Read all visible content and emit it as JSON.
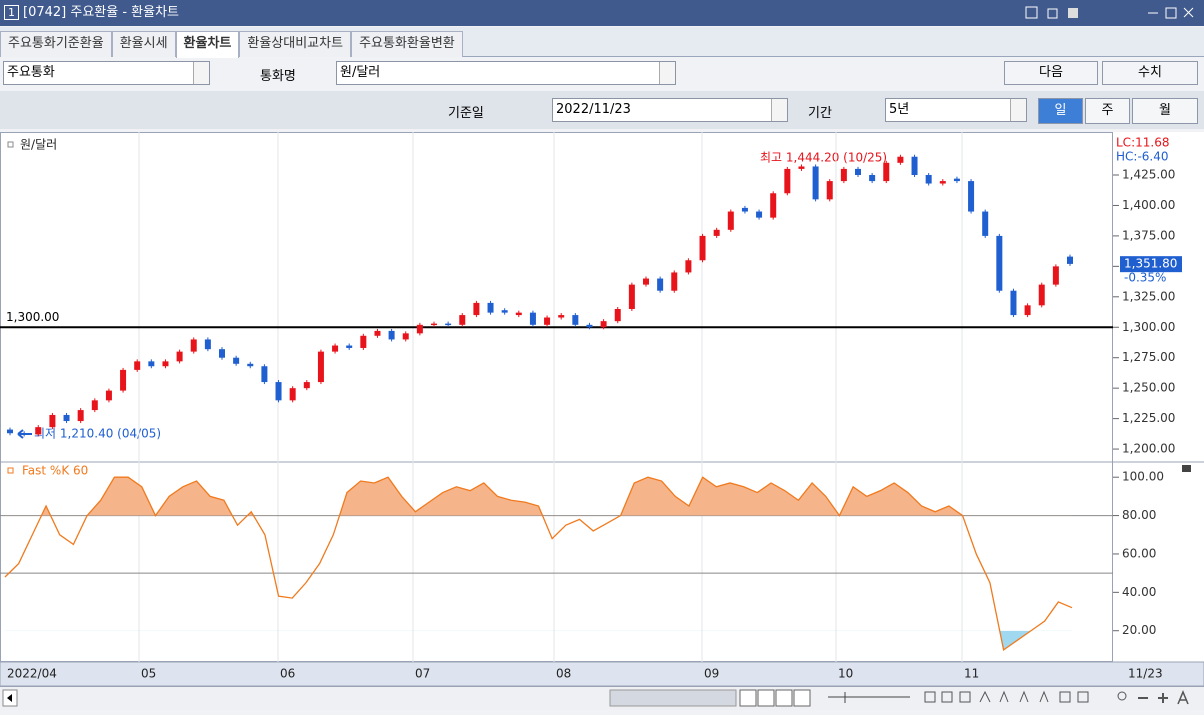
{
  "window": {
    "number": "1",
    "title": "[0742] 주요환율 - 환율차트"
  },
  "tabs": [
    "주요통화기준환율",
    "환율시세",
    "환율차트",
    "환율상대비교차트",
    "주요통화환율변환"
  ],
  "controls": {
    "group": "주요통화",
    "currency_label": "통화명",
    "currency": "원/달러",
    "next": "다음",
    "values": "수치",
    "date_label": "기준일",
    "date": "2022/11/23",
    "period_label": "기간",
    "period": "5년",
    "intervals": [
      "일",
      "주",
      "월"
    ]
  },
  "x_axis_labels": [
    "2022/04",
    "05",
    "06",
    "07",
    "08",
    "09",
    "10",
    "11",
    "11/23"
  ],
  "chart_data": [
    {
      "type": "candlestick",
      "title": "원/달러",
      "color_up": "#e8141b",
      "color_down": "#1f5fd0",
      "ylim": [
        1190.2,
        1460.3
      ],
      "yticks": [
        {
          "value": 1200,
          "label": "1,200.00"
        },
        {
          "value": 1225,
          "label": "1,225.00"
        },
        {
          "value": 1250,
          "label": "1,250.00"
        },
        {
          "value": 1275,
          "label": "1,275.00"
        },
        {
          "value": 1300,
          "label": "1,300.00"
        },
        {
          "value": 1325,
          "label": "1,325.00"
        },
        {
          "value": 1350,
          "label": "1,350.00"
        },
        {
          "value": 1375,
          "label": "1,375.00"
        },
        {
          "value": 1400,
          "label": "1,400.00"
        },
        {
          "value": 1425,
          "label": "1,425.00"
        }
      ],
      "ref_line": {
        "value": 1300,
        "label": "1,300.00"
      },
      "high_label": "최고 1,444.20 (10/25)",
      "low_label": "최저 1,210.40 (04/05)",
      "lc": "LC:11.68",
      "hc": "HC:-6.40",
      "last": {
        "value": 1351.8,
        "label": "1,351.80"
      },
      "change": "-0.35%",
      "candles": [
        [
          1216,
          1213
        ],
        [
          1213,
          1212
        ],
        [
          1212,
          1218
        ],
        [
          1218,
          1228
        ],
        [
          1228,
          1223
        ],
        [
          1223,
          1232
        ],
        [
          1232,
          1240
        ],
        [
          1240,
          1248
        ],
        [
          1248,
          1265
        ],
        [
          1265,
          1272
        ],
        [
          1272,
          1268
        ],
        [
          1268,
          1272
        ],
        [
          1272,
          1280
        ],
        [
          1280,
          1290
        ],
        [
          1290,
          1282
        ],
        [
          1282,
          1275
        ],
        [
          1275,
          1270
        ],
        [
          1270,
          1268
        ],
        [
          1268,
          1255
        ],
        [
          1255,
          1240
        ],
        [
          1240,
          1250
        ],
        [
          1250,
          1255
        ],
        [
          1255,
          1280
        ],
        [
          1280,
          1285
        ],
        [
          1285,
          1283
        ],
        [
          1283,
          1293
        ],
        [
          1293,
          1297
        ],
        [
          1297,
          1290
        ],
        [
          1290,
          1295
        ],
        [
          1295,
          1302
        ],
        [
          1302,
          1303
        ],
        [
          1303,
          1302
        ],
        [
          1302,
          1310
        ],
        [
          1310,
          1320
        ],
        [
          1320,
          1312
        ],
        [
          1314,
          1312
        ],
        [
          1310,
          1312
        ],
        [
          1312,
          1302
        ],
        [
          1302,
          1308
        ],
        [
          1308,
          1310
        ],
        [
          1310,
          1302
        ],
        [
          1302,
          1300
        ],
        [
          1300,
          1305
        ],
        [
          1305,
          1315
        ],
        [
          1315,
          1335
        ],
        [
          1335,
          1340
        ],
        [
          1340,
          1330
        ],
        [
          1330,
          1345
        ],
        [
          1345,
          1355
        ],
        [
          1355,
          1375
        ],
        [
          1375,
          1380
        ],
        [
          1380,
          1395
        ],
        [
          1398,
          1395
        ],
        [
          1395,
          1390
        ],
        [
          1390,
          1410
        ],
        [
          1410,
          1430
        ],
        [
          1430,
          1432
        ],
        [
          1432,
          1405
        ],
        [
          1405,
          1420
        ],
        [
          1420,
          1430
        ],
        [
          1430,
          1425
        ],
        [
          1425,
          1420
        ],
        [
          1420,
          1435
        ],
        [
          1435,
          1440
        ],
        [
          1440,
          1425
        ],
        [
          1425,
          1418
        ],
        [
          1418,
          1420
        ],
        [
          1422,
          1420
        ],
        [
          1420,
          1395
        ],
        [
          1395,
          1375
        ],
        [
          1375,
          1330
        ],
        [
          1330,
          1310
        ],
        [
          1310,
          1318
        ],
        [
          1318,
          1335
        ],
        [
          1335,
          1350
        ],
        [
          1358,
          1352
        ]
      ]
    },
    {
      "type": "line",
      "title": "Fast %K 60",
      "color": "#f07a1e",
      "fill_high_color": "#f5b48a",
      "fill_low_color": "#9fd8ef",
      "fill_above": 80,
      "fill_below": 20,
      "ref_lines": [
        80,
        50
      ],
      "ylim": [
        3.7,
        107.4
      ],
      "yticks": [
        {
          "value": 20,
          "label": "20.00"
        },
        {
          "value": 40,
          "label": "40.00"
        },
        {
          "value": 60,
          "label": "60.00"
        },
        {
          "value": 80,
          "label": "80.00"
        },
        {
          "value": 100,
          "label": "100.00"
        }
      ],
      "values": [
        48,
        55,
        70,
        85,
        70,
        65,
        80,
        88,
        100,
        100,
        95,
        80,
        90,
        95,
        98,
        90,
        88,
        75,
        82,
        70,
        38,
        37,
        45,
        55,
        70,
        92,
        98,
        97,
        100,
        90,
        82,
        87,
        92,
        95,
        93,
        97,
        90,
        88,
        87,
        85,
        68,
        75,
        78,
        72,
        76,
        80,
        97,
        100,
        98,
        90,
        85,
        100,
        95,
        97,
        95,
        92,
        97,
        93,
        88,
        97,
        90,
        80,
        95,
        90,
        93,
        97,
        92,
        85,
        82,
        85,
        80,
        60,
        45,
        10,
        15,
        20,
        25,
        35,
        32
      ]
    }
  ]
}
